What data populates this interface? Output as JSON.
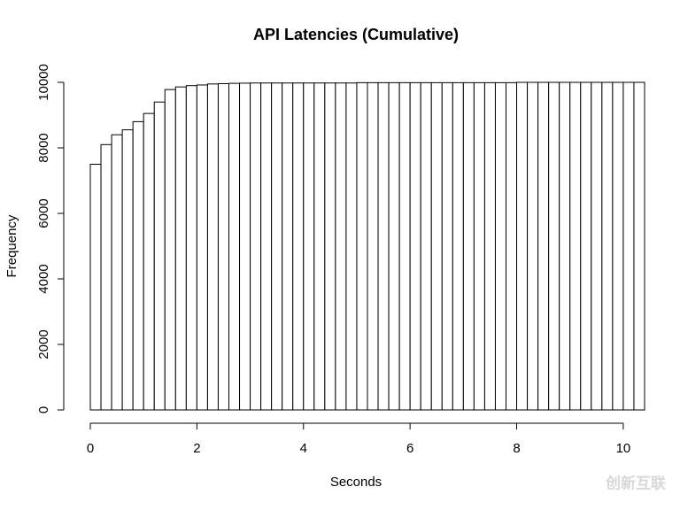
{
  "chart_data": {
    "type": "histogram",
    "title": "API Latencies (Cumulative)",
    "x_label": "Seconds",
    "y_label": "Frequency",
    "bins": [
      0,
      0.2,
      0.4,
      0.6,
      0.8,
      1,
      1.2,
      1.4,
      1.6,
      1.8,
      2,
      2.2,
      2.4,
      2.6,
      2.8,
      3,
      3.2,
      3.4,
      3.6,
      3.8,
      4,
      4.2,
      4.4,
      4.6,
      4.8,
      5,
      5.2,
      5.4,
      5.6,
      5.8,
      6,
      6.2,
      6.4,
      6.6,
      6.8,
      7,
      7.2,
      7.4,
      7.6,
      7.8,
      8,
      8.2,
      8.4,
      8.6,
      8.8,
      9,
      9.2,
      9.4,
      9.6,
      9.8,
      10,
      10.2,
      10.4
    ],
    "values": [
      7500,
      8100,
      8400,
      8550,
      8800,
      9050,
      9400,
      9780,
      9860,
      9900,
      9920,
      9950,
      9960,
      9970,
      9975,
      9980,
      9980,
      9980,
      9980,
      9980,
      9980,
      9980,
      9980,
      9980,
      9980,
      9990,
      9990,
      9990,
      9990,
      9990,
      9990,
      9990,
      9990,
      9990,
      9990,
      9990,
      9990,
      9990,
      9990,
      9990,
      10000,
      10000,
      10000,
      10000,
      10000,
      10000,
      10000,
      10000,
      10000,
      10000,
      10000,
      10000
    ],
    "color": "#ffffff",
    "edge_color": "#000000",
    "xlim": [
      0,
      10.4
    ],
    "xticks": [
      0,
      2,
      4,
      6,
      8,
      10
    ],
    "ylim": [
      0,
      10000
    ],
    "yticks": [
      0,
      2000,
      4000,
      6000,
      8000,
      10000
    ],
    "grid": false
  },
  "watermark": "创新互联"
}
